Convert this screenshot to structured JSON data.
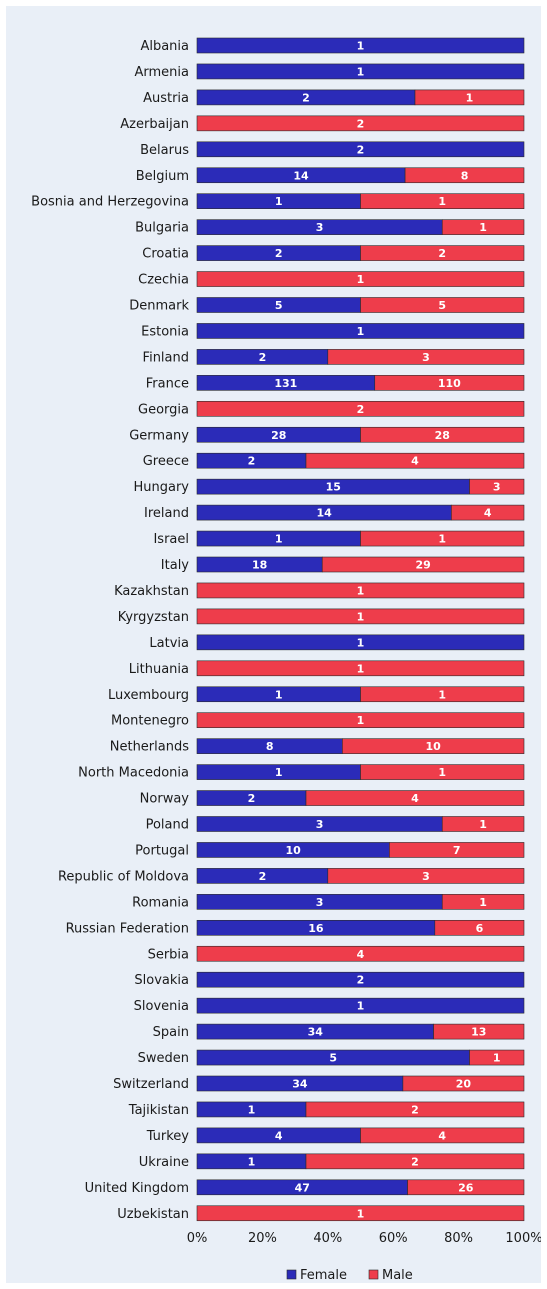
{
  "chart_data": {
    "type": "bar",
    "orientation": "horizontal",
    "stacked": "percent",
    "categories": [
      "Albania",
      "Armenia",
      "Austria",
      "Azerbaijan",
      "Belarus",
      "Belgium",
      "Bosnia and Herzegovina",
      "Bulgaria",
      "Croatia",
      "Czechia",
      "Denmark",
      "Estonia",
      "Finland",
      "France",
      "Georgia",
      "Germany",
      "Greece",
      "Hungary",
      "Ireland",
      "Israel",
      "Italy",
      "Kazakhstan",
      "Kyrgyzstan",
      "Latvia",
      "Lithuania",
      "Luxembourg",
      "Montenegro",
      "Netherlands",
      "North Macedonia",
      "Norway",
      "Poland",
      "Portugal",
      "Republic of Moldova",
      "Romania",
      "Russian Federation",
      "Serbia",
      "Slovakia",
      "Slovenia",
      "Spain",
      "Sweden",
      "Switzerland",
      "Tajikistan",
      "Turkey",
      "Ukraine",
      "United Kingdom",
      "Uzbekistan"
    ],
    "series": [
      {
        "name": "Female",
        "color": "#2b2bb8",
        "values": [
          1,
          1,
          2,
          0,
          2,
          14,
          1,
          3,
          2,
          0,
          5,
          1,
          2,
          131,
          0,
          28,
          2,
          15,
          14,
          1,
          18,
          0,
          0,
          1,
          0,
          1,
          0,
          8,
          1,
          2,
          3,
          10,
          2,
          3,
          16,
          0,
          2,
          1,
          34,
          5,
          34,
          1,
          4,
          1,
          47,
          0
        ]
      },
      {
        "name": "Male",
        "color": "#ee3d4b",
        "values": [
          0,
          0,
          1,
          2,
          0,
          8,
          1,
          1,
          2,
          1,
          5,
          0,
          3,
          110,
          2,
          28,
          4,
          3,
          4,
          1,
          29,
          1,
          1,
          0,
          1,
          1,
          1,
          10,
          1,
          4,
          1,
          7,
          3,
          1,
          6,
          4,
          0,
          0,
          13,
          1,
          20,
          2,
          4,
          2,
          26,
          1
        ]
      }
    ],
    "xticks": [
      "0%",
      "20%",
      "40%",
      "60%",
      "80%",
      "100%"
    ],
    "xlim": [
      0,
      100
    ],
    "grid": false,
    "legend": "bottom"
  }
}
